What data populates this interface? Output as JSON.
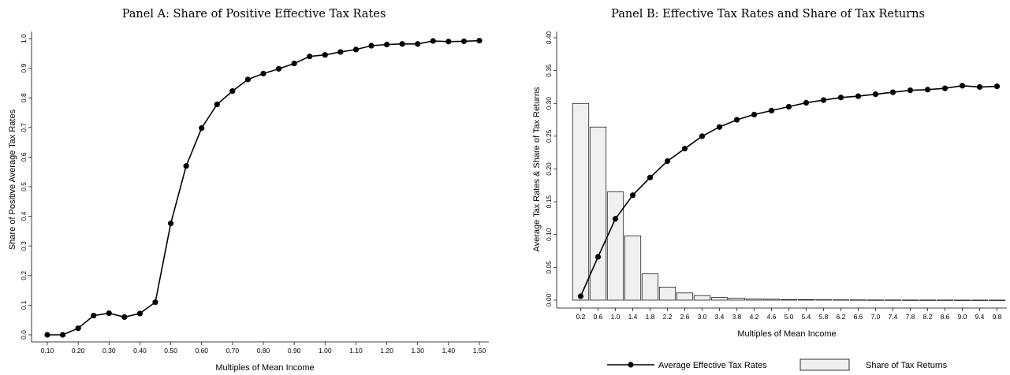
{
  "chart_data": [
    {
      "type": "line",
      "title": "Panel A: Share of Positive Effective Tax Rates",
      "xlabel": "Multiples of Mean Income",
      "ylabel": "Share of Positive Average Tax Rates",
      "xlim": [
        0.1,
        1.5
      ],
      "ylim": [
        0.0,
        1.0
      ],
      "grid": false,
      "x_ticks": [
        "0.10",
        "0.20",
        "0.30",
        "0.40",
        "0.50",
        "0.60",
        "0.70",
        "0.80",
        "0.90",
        "1.00",
        "1.10",
        "1.20",
        "1.30",
        "1.40",
        "1.50"
      ],
      "y_ticks": [
        "0.0",
        "0.1",
        "0.2",
        "0.3",
        "0.4",
        "0.5",
        "0.6",
        "0.7",
        "0.8",
        "0.9",
        "1.0"
      ],
      "series": [
        {
          "x": [
            0.1,
            0.15,
            0.2,
            0.25,
            0.3,
            0.35,
            0.4,
            0.45,
            0.5,
            0.55,
            0.6,
            0.65,
            0.7,
            0.75,
            0.8,
            0.85,
            0.9,
            0.95,
            1.0,
            1.05,
            1.1,
            1.15,
            1.2,
            1.25,
            1.3,
            1.35,
            1.4,
            1.45,
            1.5
          ],
          "y": [
            0.0,
            0.0,
            0.022,
            0.065,
            0.073,
            0.06,
            0.072,
            0.11,
            0.376,
            0.57,
            0.698,
            0.778,
            0.823,
            0.862,
            0.882,
            0.898,
            0.916,
            0.94,
            0.945,
            0.955,
            0.963,
            0.976,
            0.98,
            0.982,
            0.982,
            0.992,
            0.99,
            0.991,
            0.993
          ]
        }
      ]
    },
    {
      "type": "bar",
      "title": "Panel B: Effective Tax Rates and Share of Tax Returns",
      "xlabel": "Multiples of Mean Income",
      "ylabel": "Average Tax Rates & Share of Tax Returns",
      "ylim": [
        0.0,
        0.4
      ],
      "grid": false,
      "legend_position": "bottom",
      "y_ticks": [
        "0.00",
        "0.05",
        "0.10",
        "0.15",
        "0.20",
        "0.25",
        "0.30",
        "0.35",
        "0.40"
      ],
      "categories": [
        "0.2",
        "0.6",
        "1.0",
        "1.4",
        "1.8",
        "2.2",
        "2.6",
        "3.0",
        "3.4",
        "3.8",
        "4.2",
        "4.6",
        "5.0",
        "5.4",
        "5.8",
        "6.2",
        "6.6",
        "7.0",
        "7.4",
        "7.8",
        "8.2",
        "8.6",
        "9.0",
        "9.4",
        "9.8"
      ],
      "series": [
        {
          "name": "Average Effective Tax Rates",
          "type": "line",
          "values": [
            0.006,
            0.066,
            0.124,
            0.16,
            0.187,
            0.212,
            0.231,
            0.25,
            0.264,
            0.275,
            0.283,
            0.289,
            0.295,
            0.301,
            0.305,
            0.309,
            0.311,
            0.314,
            0.317,
            0.32,
            0.321,
            0.323,
            0.327,
            0.325,
            0.326
          ]
        },
        {
          "name": "Share of Tax Returns",
          "type": "bar",
          "values": [
            0.3,
            0.264,
            0.165,
            0.098,
            0.04,
            0.02,
            0.011,
            0.007,
            0.004,
            0.003,
            0.002,
            0.0015,
            0.001,
            0.0008,
            0.0006,
            0.0005,
            0.0004,
            0.0003,
            0.0003,
            0.0002,
            0.0002,
            0.0002,
            0.0001,
            0.0001,
            0.0001
          ]
        }
      ]
    }
  ]
}
